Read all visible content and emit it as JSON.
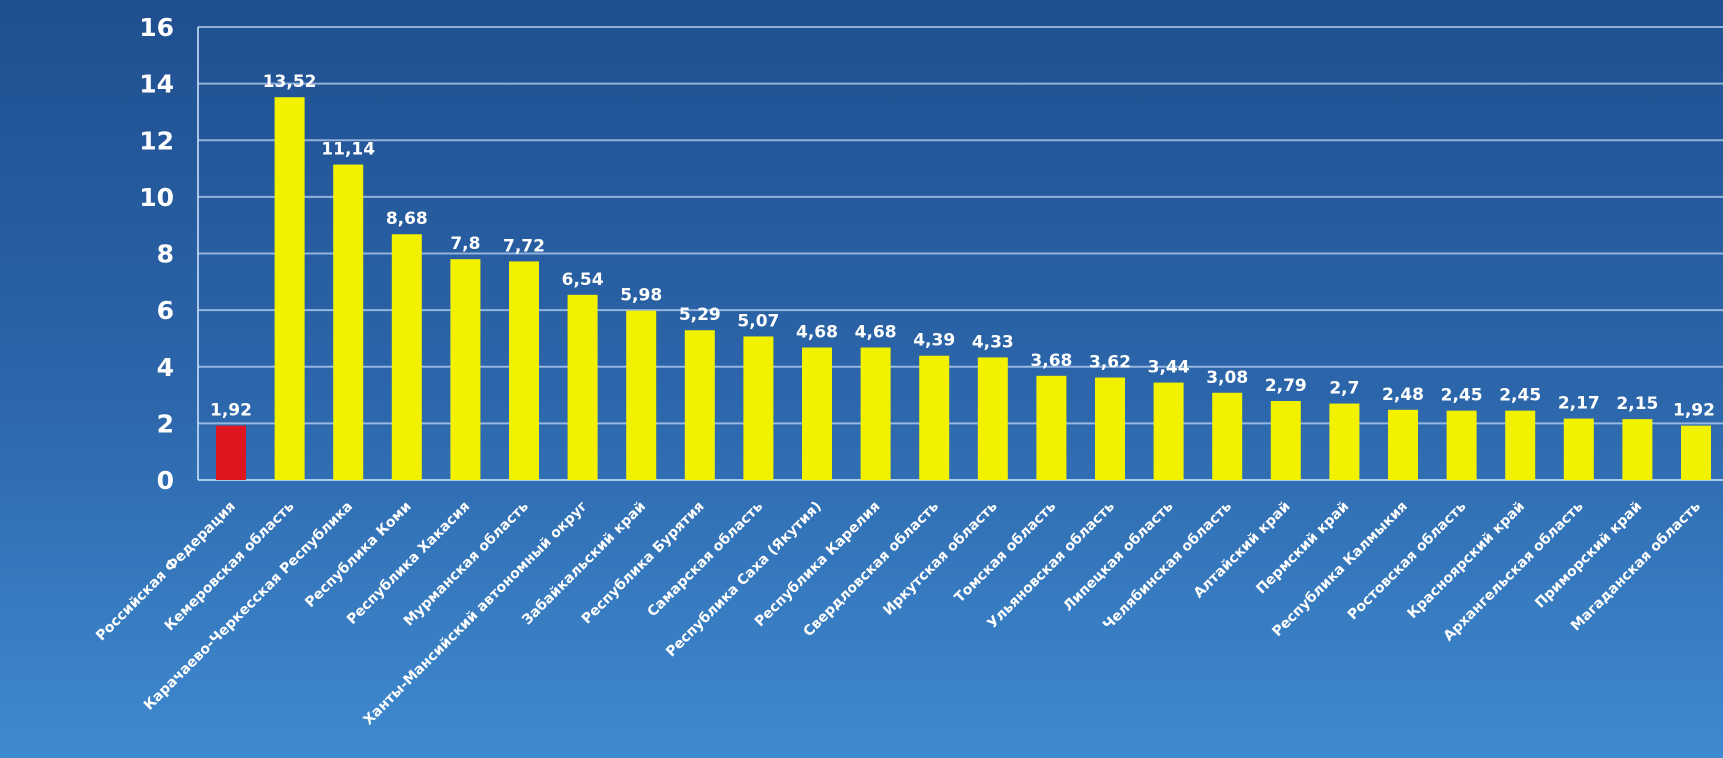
{
  "chart_data": {
    "type": "bar",
    "categories": [
      "Российская Федерация",
      "Кемеровская область",
      "Карачаево-Черкесская Республика",
      "Республика Коми",
      "Республика Хакасия",
      "Мурманская область",
      "Ханты-Мансийский автономный округ",
      "Забайкальский край",
      "Республика Бурятия",
      "Самарская область",
      "Республика Саха (Якутия)",
      "Республика Карелия",
      "Свердловская область",
      "Иркутская область",
      "Томская область",
      "Ульяновская область",
      "Липецкая область",
      "Челябинская область",
      "Алтайский край",
      "Пермский край",
      "Республика Калмыкия",
      "Ростовская область",
      "Красноярский край",
      "Архангельская область",
      "Приморский край",
      "Магаданская область"
    ],
    "values": [
      1.92,
      13.52,
      11.14,
      8.68,
      7.8,
      7.72,
      6.54,
      5.98,
      5.29,
      5.07,
      4.68,
      4.68,
      4.39,
      4.33,
      3.68,
      3.62,
      3.44,
      3.08,
      2.79,
      2.7,
      2.48,
      2.45,
      2.45,
      2.17,
      2.15,
      1.92
    ],
    "data_labels": [
      "1,92",
      "13,52",
      "11,14",
      "8,68",
      "7,8",
      "7,72",
      "6,54",
      "5,98",
      "5,29",
      "5,07",
      "4,68",
      "4,68",
      "4,39",
      "4,33",
      "3,68",
      "3,62",
      "3,44",
      "3,08",
      "2,79",
      "2,7",
      "2,48",
      "2,45",
      "2,45",
      "2,17",
      "2,15",
      "1,92"
    ],
    "y_ticks": [
      "0",
      "2",
      "4",
      "6",
      "8",
      "10",
      "12",
      "14",
      "16"
    ],
    "ylim": [
      0,
      16
    ],
    "grid": true,
    "legend": "none",
    "title": "",
    "xlabel": "",
    "ylabel": ""
  },
  "colors": {
    "background_top": "#1f4f90",
    "background_bottom": "#3f8ad0",
    "gridline": "#d6e8ff",
    "highlight_bar": "#e0161f",
    "bar": "#f2f200",
    "text": "#ffffff"
  }
}
